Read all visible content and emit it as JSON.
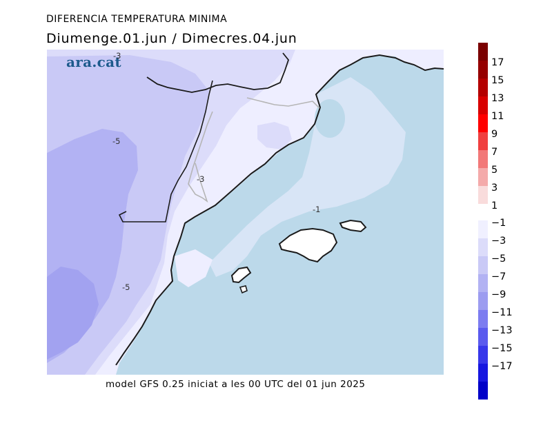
{
  "header": {
    "title": "DIFERENCIA TEMPERATURA MINIMA",
    "subtitle": "Diumenge.01.jun / Dimecres.04.jun"
  },
  "logo": {
    "text": "ara.cat",
    "color": "#1c5a8c"
  },
  "footer": {
    "text": "model GFS 0.25 iniciat a les 00 UTC del 01 jun 2025"
  },
  "map": {
    "contour_labels": [
      "-3",
      "-5",
      "-3",
      "-1",
      "-5"
    ],
    "colors": {
      "sea": "#bcd9ea",
      "land_-1": "#eeeeff",
      "land_-3": "#dcdcfa",
      "land_-5": "#c9c9f6",
      "land_-7": "#b2b2f3",
      "land_-9": "#a2a2f0",
      "coast": "#1a1a1a",
      "border": "#b5b5b5"
    }
  },
  "legend": {
    "labels": [
      "17",
      "15",
      "13",
      "11",
      "9",
      "7",
      "5",
      "3",
      "1",
      "−1",
      "−3",
      "−5",
      "−7",
      "−9",
      "−11",
      "−13",
      "−15",
      "−17"
    ],
    "positive_colors": [
      "#7a0000",
      "#960000",
      "#b40000",
      "#d80000",
      "#ff0000",
      "#f04040",
      "#f27878",
      "#f4aaaa",
      "#f9dcdc"
    ],
    "negative_colors": [
      "#f0f0ff",
      "#dcdcfa",
      "#c9c9f6",
      "#b2b2f3",
      "#9c9cf0",
      "#7c7cf0",
      "#5a5aee",
      "#3737ea",
      "#1717e0",
      "#0000c8"
    ]
  }
}
